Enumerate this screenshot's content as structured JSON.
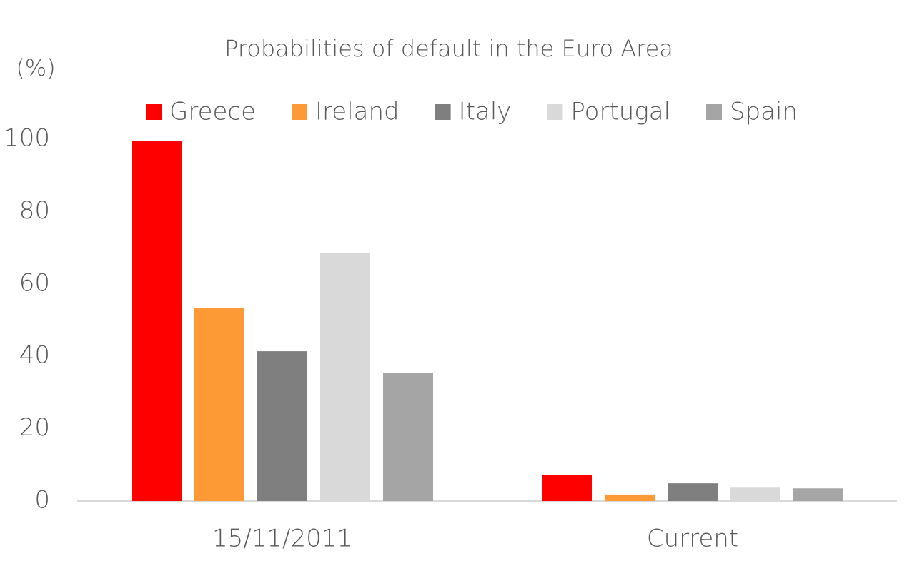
{
  "chart_data": {
    "type": "bar",
    "title": "Probabilities of default in the Euro Area",
    "y_label": "(%)",
    "categories": [
      "15/11/2011",
      "Current"
    ],
    "series": [
      {
        "name": "Greece",
        "color": "#ff0000",
        "values": [
          99.5,
          7.1
        ]
      },
      {
        "name": "Ireland",
        "color": "#fd9a35",
        "values": [
          53.3,
          1.8
        ]
      },
      {
        "name": "Italy",
        "color": "#7f7f7f",
        "values": [
          41.4,
          4.9
        ]
      },
      {
        "name": "Portugal",
        "color": "#d9d9d9",
        "values": [
          68.6,
          3.7
        ]
      },
      {
        "name": "Spain",
        "color": "#a5a5a5",
        "values": [
          35.3,
          3.5
        ]
      }
    ],
    "ylim": [
      0,
      100
    ],
    "yticks": [
      0,
      20,
      40,
      60,
      80,
      100
    ],
    "grid": false,
    "legend": "top"
  }
}
